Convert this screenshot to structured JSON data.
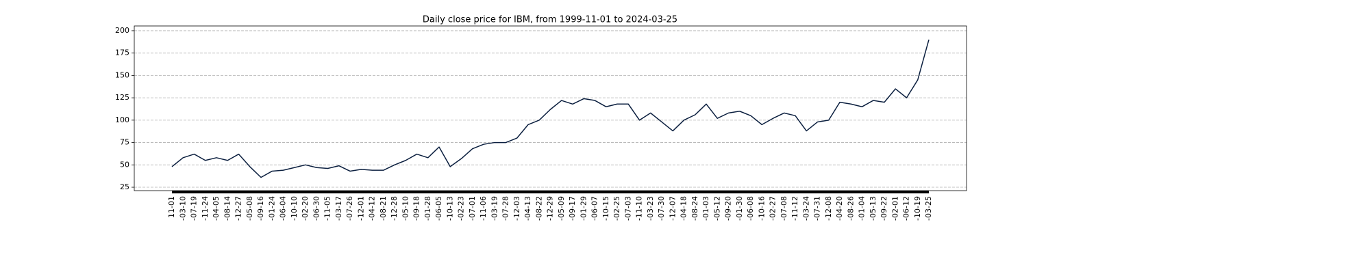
{
  "chart_data": {
    "type": "line",
    "title": "Daily close price for IBM, from 1999-11-01 to 2024-03-25",
    "categories": [
      "11-01",
      "-03-10",
      "-07-19",
      "-11-24",
      "-04-05",
      "-08-14",
      "-12-27",
      "-05-08",
      "-09-16",
      "-01-24",
      "-06-04",
      "-10-10",
      "-02-20",
      "-06-30",
      "-11-05",
      "-03-17",
      "-07-26",
      "-12-01",
      "-04-12",
      "-08-21",
      "-12-28",
      "-05-10",
      "-09-18",
      "-01-28",
      "-06-05",
      "-10-13",
      "-02-23",
      "-07-01",
      "-11-06",
      "-03-19",
      "-07-28",
      "-12-03",
      "-04-13",
      "-08-22",
      "-12-29",
      "-05-09",
      "-09-17",
      "-01-29",
      "-06-07",
      "-10-15",
      "-02-25",
      "-07-03",
      "-11-10",
      "-03-23",
      "-07-30",
      "-12-07",
      "-04-18",
      "-08-24",
      "-01-03",
      "-05-12",
      "-09-20",
      "-01-30",
      "-06-08",
      "-10-16",
      "-02-27",
      "-07-08",
      "-11-12",
      "-03-24",
      "-07-31",
      "-12-08",
      "-04-20",
      "-08-26",
      "-01-04",
      "-05-13",
      "-09-22",
      "-02-01",
      "-06-12",
      "-10-19",
      "-03-25"
    ],
    "values": [
      48,
      58,
      62,
      55,
      58,
      55,
      62,
      48,
      36,
      43,
      44,
      47,
      50,
      47,
      46,
      49,
      43,
      45,
      44,
      44,
      50,
      55,
      62,
      58,
      70,
      48,
      57,
      68,
      73,
      75,
      75,
      80,
      95,
      100,
      112,
      122,
      118,
      124,
      122,
      115,
      118,
      118,
      100,
      108,
      98,
      88,
      100,
      106,
      118,
      102,
      108,
      110,
      105,
      95,
      102,
      108,
      105,
      88,
      98,
      100,
      120,
      118,
      115,
      122,
      120,
      135,
      125,
      145,
      190
    ],
    "color": "#0b1f3f",
    "ylim": [
      21.2,
      205.3
    ],
    "yticks": [
      25,
      50,
      75,
      100,
      125,
      150,
      175,
      200
    ],
    "grid": true
  }
}
